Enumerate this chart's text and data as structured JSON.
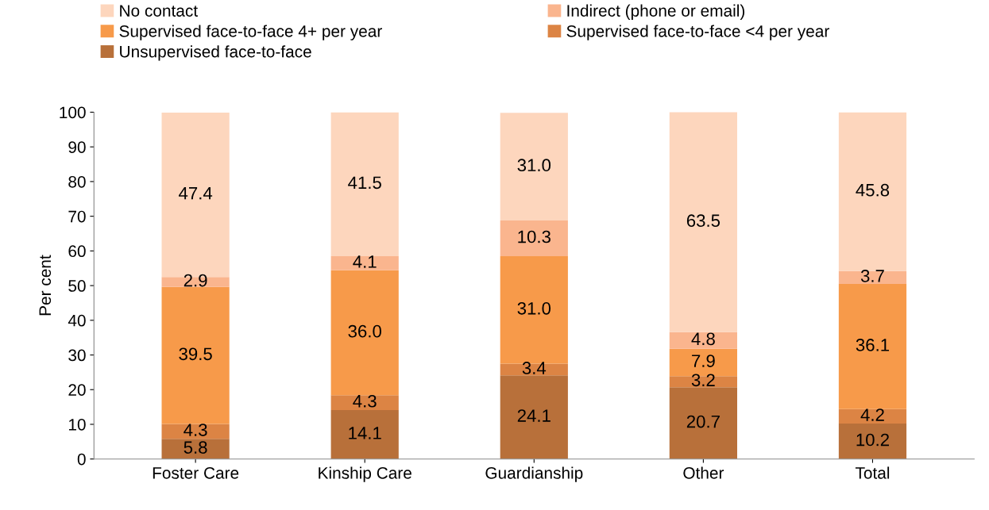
{
  "chart_data": {
    "type": "bar",
    "stacked": true,
    "ylabel": "Per cent",
    "categories": [
      "Foster Care",
      "Kinship Care",
      "Guardianship",
      "Other",
      "Total"
    ],
    "series": [
      {
        "name": "Unsupervised face-to-face",
        "color": "#b8703a",
        "values": [
          5.8,
          14.1,
          24.1,
          20.7,
          10.2
        ],
        "value_labels": [
          "5.8",
          "14.1",
          "24.1",
          "20.7",
          "10.2"
        ]
      },
      {
        "name": "Supervised face-to-face <4 per year",
        "color": "#dc8444",
        "values": [
          4.3,
          4.3,
          3.4,
          3.2,
          4.2
        ],
        "value_labels": [
          "4.3",
          "4.3",
          "3.4",
          "3.2",
          "4.2"
        ]
      },
      {
        "name": "Supervised face-to-face 4+ per year",
        "color": "#f79a4a",
        "values": [
          39.5,
          36.0,
          31.0,
          7.9,
          36.1
        ],
        "value_labels": [
          "39.5",
          "36.0",
          "31.0",
          "7.9",
          "36.1"
        ]
      },
      {
        "name": "Indirect (phone or email)",
        "color": "#fab58e",
        "values": [
          2.9,
          4.1,
          10.3,
          4.8,
          3.7
        ],
        "value_labels": [
          "2.9",
          "4.1",
          "10.3",
          "4.8",
          "3.7"
        ]
      },
      {
        "name": "No contact",
        "color": "#fdd6bd",
        "values": [
          47.4,
          41.5,
          31.0,
          63.5,
          45.8
        ],
        "value_labels": [
          "47.4",
          "41.5",
          "31.0",
          "63.5",
          "45.8"
        ]
      }
    ],
    "ylim": [
      0,
      100
    ],
    "yticks": [
      0,
      10,
      20,
      30,
      40,
      50,
      60,
      70,
      80,
      90,
      100
    ],
    "grid": false,
    "legend": "top"
  }
}
